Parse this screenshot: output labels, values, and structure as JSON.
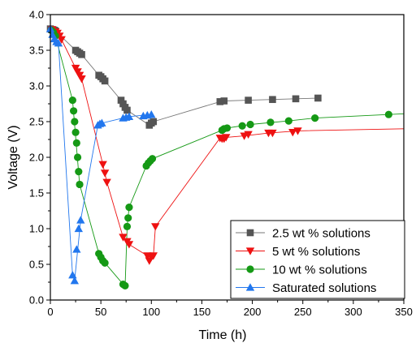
{
  "chart_data": {
    "type": "scatter",
    "title": "",
    "xlabel": "Time (h)",
    "ylabel": "Voltage (V)",
    "xlim": [
      0,
      350
    ],
    "ylim": [
      0,
      4.0
    ],
    "x_ticks": [
      "0",
      "50",
      "100",
      "150",
      "200",
      "250",
      "300",
      "350"
    ],
    "y_ticks": [
      "0.0",
      "0.5",
      "1.0",
      "1.5",
      "2.0",
      "2.5",
      "3.0",
      "3.5",
      "4.0"
    ],
    "legend_position": "bottom-right",
    "series": [
      {
        "name": "2.5 wt % solutions",
        "marker": "square",
        "color": "#555555",
        "points": [
          [
            0,
            3.8
          ],
          [
            2,
            3.79
          ],
          [
            4,
            3.78
          ],
          [
            5,
            3.77
          ],
          [
            25,
            3.5
          ],
          [
            27,
            3.48
          ],
          [
            29,
            3.46
          ],
          [
            31,
            3.44
          ],
          [
            48,
            3.15
          ],
          [
            50,
            3.13
          ],
          [
            52,
            3.1
          ],
          [
            54,
            3.07
          ],
          [
            70,
            2.8
          ],
          [
            72,
            2.75
          ],
          [
            74,
            2.7
          ],
          [
            76,
            2.66
          ],
          [
            98,
            2.45
          ],
          [
            100,
            2.48
          ],
          [
            102,
            2.5
          ],
          [
            168,
            2.78
          ],
          [
            172,
            2.79
          ],
          [
            196,
            2.8
          ],
          [
            220,
            2.81
          ],
          [
            243,
            2.82
          ],
          [
            265,
            2.83
          ]
        ]
      },
      {
        "name": "5 wt % solutions",
        "marker": "triangle-down",
        "color": "#ee1111",
        "points": [
          [
            2,
            3.79
          ],
          [
            5,
            3.76
          ],
          [
            7,
            3.74
          ],
          [
            9,
            3.7
          ],
          [
            11,
            3.65
          ],
          [
            25,
            3.25
          ],
          [
            27,
            3.2
          ],
          [
            29,
            3.15
          ],
          [
            31,
            3.1
          ],
          [
            52,
            1.9
          ],
          [
            54,
            1.78
          ],
          [
            56,
            1.65
          ],
          [
            72,
            0.88
          ],
          [
            76,
            0.82
          ],
          [
            78,
            0.78
          ],
          [
            96,
            0.62
          ],
          [
            98,
            0.55
          ],
          [
            100,
            0.6
          ],
          [
            102,
            0.62
          ],
          [
            104,
            1.03
          ],
          [
            168,
            2.27
          ],
          [
            170,
            2.26
          ],
          [
            172,
            2.26
          ],
          [
            174,
            2.28
          ],
          [
            192,
            2.3
          ],
          [
            196,
            2.32
          ],
          [
            216,
            2.34
          ],
          [
            220,
            2.34
          ],
          [
            240,
            2.35
          ],
          [
            245,
            2.37
          ]
        ]
      },
      {
        "name": "10 wt % solutions",
        "marker": "circle",
        "color": "#159915",
        "points": [
          [
            1,
            3.78
          ],
          [
            3,
            3.75
          ],
          [
            5,
            3.7
          ],
          [
            22,
            2.8
          ],
          [
            23,
            2.65
          ],
          [
            24,
            2.5
          ],
          [
            25,
            2.35
          ],
          [
            26,
            2.2
          ],
          [
            27,
            2.0
          ],
          [
            28,
            1.8
          ],
          [
            29,
            1.62
          ],
          [
            48,
            0.65
          ],
          [
            50,
            0.6
          ],
          [
            52,
            0.55
          ],
          [
            54,
            0.52
          ],
          [
            72,
            0.22
          ],
          [
            74,
            0.2
          ],
          [
            76,
            1.03
          ],
          [
            77,
            1.15
          ],
          [
            78,
            1.3
          ],
          [
            95,
            1.88
          ],
          [
            97,
            1.92
          ],
          [
            99,
            1.95
          ],
          [
            101,
            1.98
          ],
          [
            170,
            2.38
          ],
          [
            172,
            2.4
          ],
          [
            175,
            2.41
          ],
          [
            190,
            2.44
          ],
          [
            198,
            2.46
          ],
          [
            218,
            2.49
          ],
          [
            236,
            2.51
          ],
          [
            262,
            2.55
          ],
          [
            335,
            2.6
          ]
        ]
      },
      {
        "name": "Saturated solutions",
        "marker": "triangle-up",
        "color": "#2277ee",
        "points": [
          [
            0,
            3.8
          ],
          [
            2,
            3.72
          ],
          [
            4,
            3.66
          ],
          [
            6,
            3.62
          ],
          [
            8,
            3.6
          ],
          [
            22,
            0.35
          ],
          [
            24,
            0.27
          ],
          [
            26,
            0.71
          ],
          [
            28,
            1.0
          ],
          [
            30,
            1.12
          ],
          [
            47,
            2.45
          ],
          [
            49,
            2.47
          ],
          [
            51,
            2.48
          ],
          [
            72,
            2.55
          ],
          [
            75,
            2.56
          ],
          [
            78,
            2.57
          ],
          [
            92,
            2.58
          ],
          [
            96,
            2.59
          ],
          [
            100,
            2.6
          ]
        ]
      }
    ],
    "lines": [
      {
        "color": "#777777",
        "points": [
          [
            0,
            3.8
          ],
          [
            5,
            3.77
          ],
          [
            25,
            3.5
          ],
          [
            31,
            3.44
          ],
          [
            48,
            3.15
          ],
          [
            54,
            3.07
          ],
          [
            70,
            2.8
          ],
          [
            76,
            2.66
          ],
          [
            98,
            2.45
          ],
          [
            102,
            2.5
          ],
          [
            168,
            2.78
          ],
          [
            172,
            2.79
          ],
          [
            196,
            2.8
          ],
          [
            220,
            2.81
          ],
          [
            243,
            2.82
          ],
          [
            265,
            2.83
          ]
        ]
      },
      {
        "color": "#ee1111",
        "points": [
          [
            2,
            3.79
          ],
          [
            11,
            3.65
          ],
          [
            25,
            3.25
          ],
          [
            31,
            3.1
          ],
          [
            52,
            1.9
          ],
          [
            56,
            1.65
          ],
          [
            72,
            0.88
          ],
          [
            78,
            0.78
          ],
          [
            96,
            0.62
          ],
          [
            98,
            0.55
          ],
          [
            102,
            0.62
          ],
          [
            104,
            1.03
          ],
          [
            168,
            2.27
          ],
          [
            174,
            2.28
          ],
          [
            192,
            2.3
          ],
          [
            216,
            2.34
          ],
          [
            245,
            2.37
          ],
          [
            350,
            2.4
          ]
        ]
      },
      {
        "color": "#159915",
        "points": [
          [
            1,
            3.78
          ],
          [
            5,
            3.7
          ],
          [
            22,
            2.8
          ],
          [
            29,
            1.62
          ],
          [
            48,
            0.65
          ],
          [
            54,
            0.52
          ],
          [
            72,
            0.22
          ],
          [
            74,
            0.2
          ],
          [
            76,
            1.03
          ],
          [
            78,
            1.3
          ],
          [
            95,
            1.88
          ],
          [
            101,
            1.98
          ],
          [
            170,
            2.38
          ],
          [
            175,
            2.41
          ],
          [
            198,
            2.46
          ],
          [
            236,
            2.51
          ],
          [
            262,
            2.55
          ],
          [
            335,
            2.6
          ],
          [
            350,
            2.61
          ]
        ]
      },
      {
        "color": "#2277ee",
        "points": [
          [
            0,
            3.8
          ],
          [
            8,
            3.6
          ],
          [
            22,
            0.35
          ],
          [
            24,
            0.27
          ],
          [
            30,
            1.12
          ],
          [
            47,
            2.45
          ],
          [
            51,
            2.48
          ],
          [
            72,
            2.55
          ],
          [
            78,
            2.57
          ],
          [
            100,
            2.6
          ]
        ]
      }
    ]
  }
}
